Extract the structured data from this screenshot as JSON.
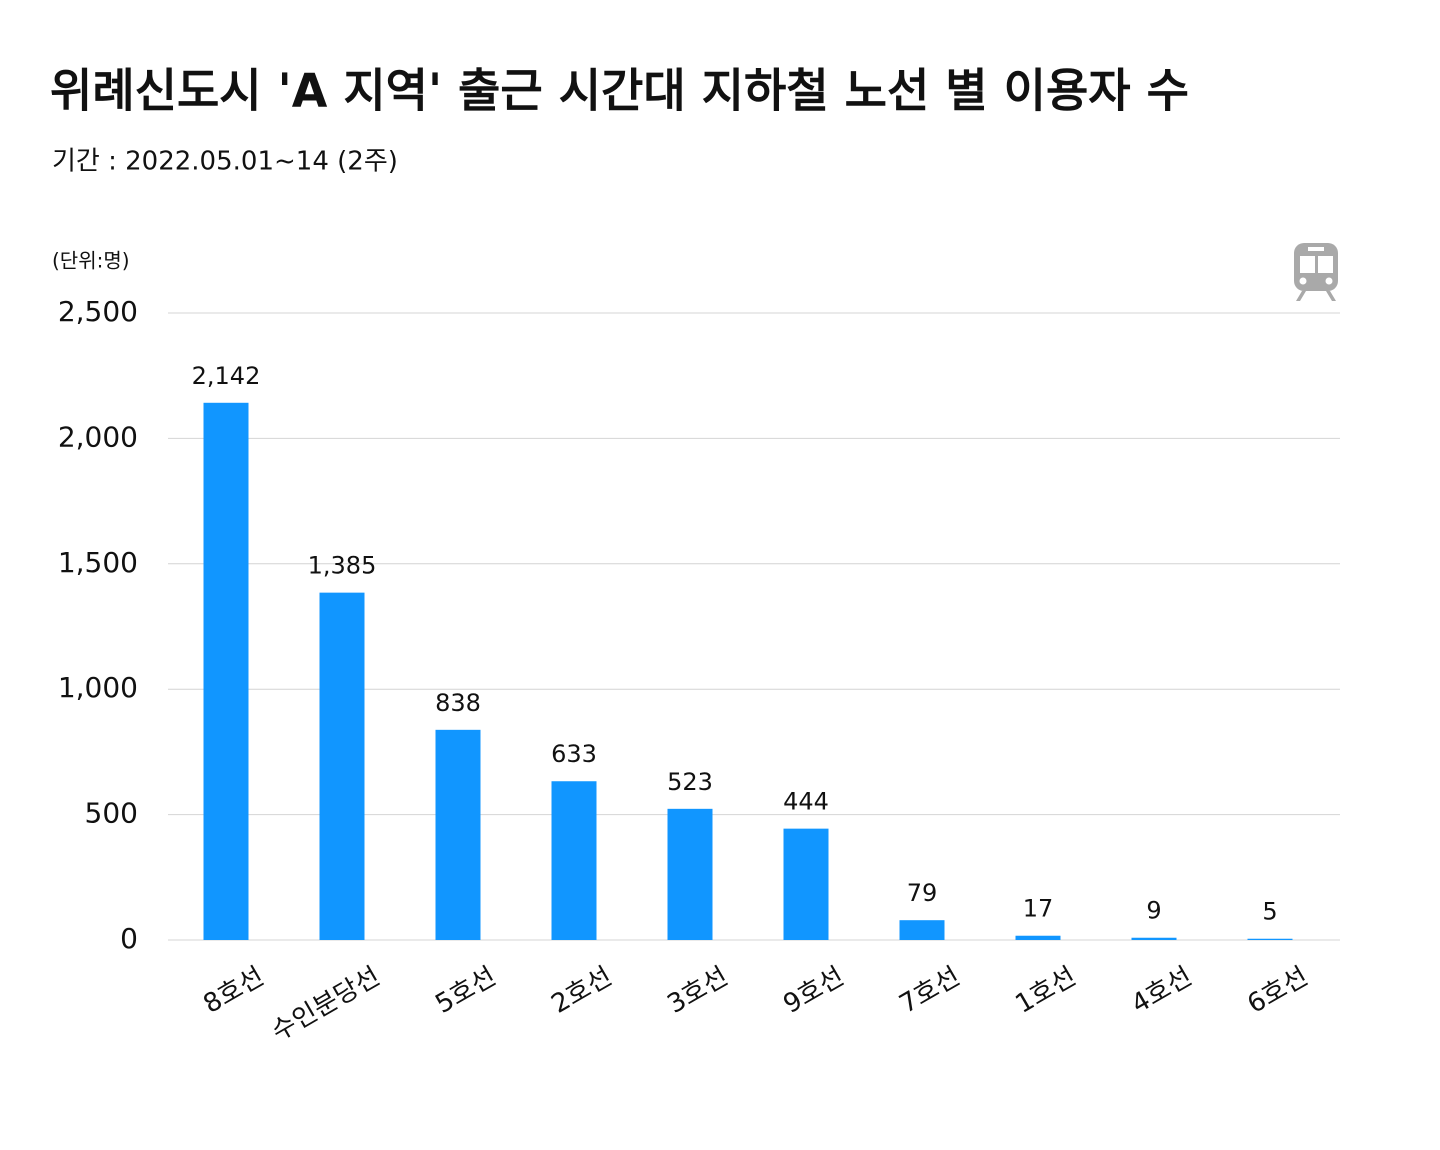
{
  "chart_data": {
    "type": "bar",
    "title": "위례신도시 'A 지역' 출근 시간대 지하철 노선 별 이용자 수",
    "subtitle": "기간 : 2022.05.01~14 (2주)",
    "unit_label": "(단위:명)",
    "categories": [
      "8호선",
      "수인분당선",
      "5호선",
      "2호선",
      "3호선",
      "9호선",
      "7호선",
      "1호선",
      "4호선",
      "6호선"
    ],
    "values": [
      2142,
      1385,
      838,
      633,
      523,
      444,
      79,
      17,
      9,
      5
    ],
    "value_labels": [
      "2,142",
      "1,385",
      "838",
      "633",
      "523",
      "444",
      "79",
      "17",
      "9",
      "5"
    ],
    "color": "#1196ff",
    "ylim": [
      0,
      2500
    ],
    "yticks": [
      0,
      500,
      {
        "value": 1000,
        "label": "1,000"
      },
      {
        "value": 1500,
        "label": "1,500"
      },
      {
        "value": 2000,
        "label": "2,000"
      },
      {
        "value": 2500,
        "label": "2,500"
      }
    ],
    "grid": true
  }
}
